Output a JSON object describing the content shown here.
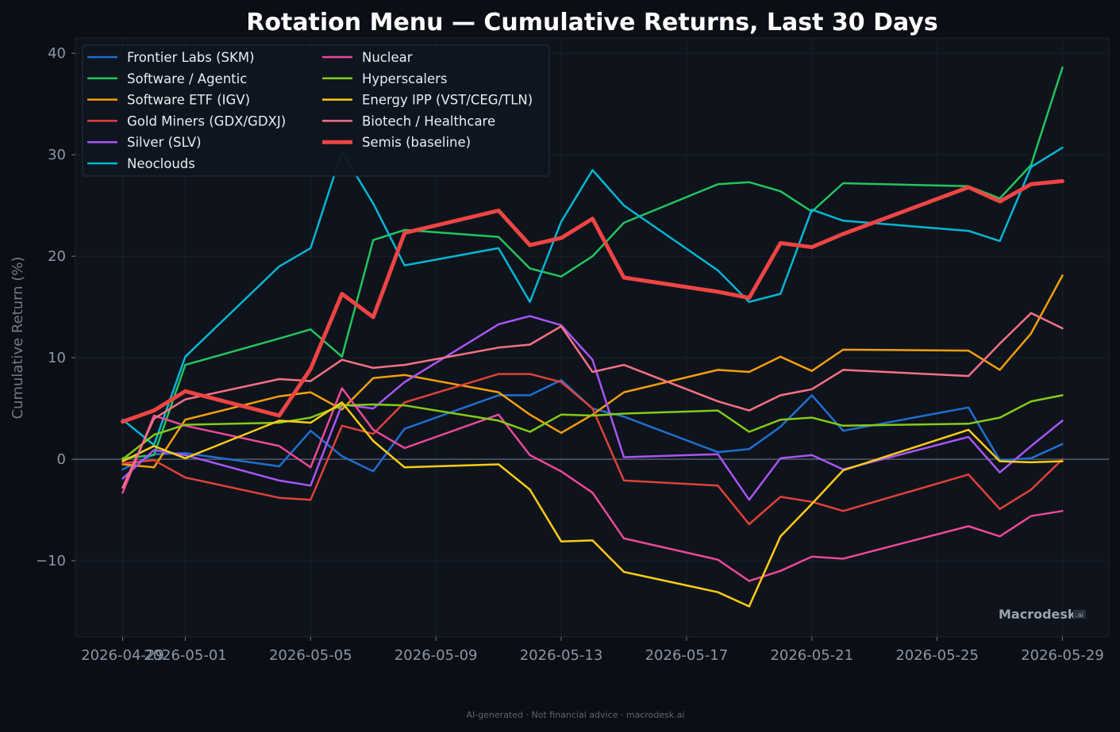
{
  "footer": "AI-generated · Not financial advice · macrodesk.ai",
  "watermark": {
    "main": "Macrodesk",
    "sub": ".ai"
  },
  "chart_data": {
    "type": "line",
    "title": "Rotation Menu — Cumulative Returns, Last 30 Days",
    "xlabel": "",
    "ylabel": "Cumulative Return (%)",
    "ylim": [
      -17.5,
      41.5
    ],
    "yticks": [
      40,
      30,
      20,
      10,
      0,
      -10
    ],
    "ytick_labels": [
      "40",
      "30",
      "20",
      "10",
      "0",
      "−10"
    ],
    "xticks": [
      "2026-04-29",
      "2026-05-01",
      "2026-05-05",
      "2026-05-09",
      "2026-05-13",
      "2026-05-17",
      "2026-05-21",
      "2026-05-25",
      "2026-05-29"
    ],
    "grid": true,
    "legend_position": "top-left",
    "x": [
      "2026-04-29",
      "2026-04-30",
      "2026-05-01",
      "2026-05-04",
      "2026-05-05",
      "2026-05-06",
      "2026-05-07",
      "2026-05-08",
      "2026-05-11",
      "2026-05-12",
      "2026-05-13",
      "2026-05-14",
      "2026-05-15",
      "2026-05-18",
      "2026-05-19",
      "2026-05-20",
      "2026-05-21",
      "2026-05-22",
      "2026-05-26",
      "2026-05-27",
      "2026-05-28",
      "2026-05-29"
    ],
    "series": [
      {
        "name": "Frontier Labs (SKM)",
        "color": "#1f6fd1",
        "width": 2.5,
        "values": [
          -1.0,
          0.5,
          0.6,
          -0.7,
          2.8,
          0.3,
          -1.2,
          3.0,
          6.3,
          6.3,
          7.8,
          5.0,
          4.2,
          0.7,
          1.0,
          3.2,
          6.3,
          2.8,
          5.1,
          -0.1,
          0.1,
          1.5
        ]
      },
      {
        "name": "Software / Agentic",
        "color": "#22c55e",
        "width": 2.5,
        "values": [
          0.1,
          0.4,
          9.3,
          11.9,
          12.8,
          10.1,
          21.6,
          22.6,
          21.9,
          18.8,
          18.0,
          20.0,
          23.3,
          27.1,
          27.3,
          26.4,
          24.4,
          27.2,
          26.9,
          25.7,
          29.0,
          38.6
        ]
      },
      {
        "name": "Software ETF (IGV)",
        "color": "#f59e0b",
        "width": 2.5,
        "values": [
          -0.5,
          -0.8,
          3.9,
          6.2,
          6.6,
          4.9,
          8.0,
          8.3,
          6.6,
          4.4,
          2.6,
          4.4,
          6.6,
          8.8,
          8.6,
          10.1,
          8.7,
          10.8,
          10.7,
          8.8,
          12.4,
          18.1
        ]
      },
      {
        "name": "Gold Miners (GDX/GDXJ)",
        "color": "#e0413a",
        "width": 2.5,
        "values": [
          -0.4,
          -0.1,
          -1.8,
          -3.8,
          -4.0,
          3.3,
          2.5,
          5.6,
          8.4,
          8.4,
          7.6,
          5.0,
          -2.1,
          -2.6,
          -6.4,
          -3.7,
          -4.2,
          -5.1,
          -1.5,
          -4.9,
          -3.0,
          0.0
        ]
      },
      {
        "name": "Silver (SLV)",
        "color": "#a855f7",
        "width": 2.5,
        "values": [
          -1.9,
          0.9,
          0.4,
          -2.1,
          -2.6,
          5.4,
          5.0,
          7.6,
          13.3,
          14.1,
          13.2,
          9.8,
          0.2,
          0.5,
          -4.0,
          0.1,
          0.4,
          -1.0,
          2.2,
          -1.3,
          1.3,
          3.8
        ]
      },
      {
        "name": "Neoclouds",
        "color": "#06b6d4",
        "width": 2.5,
        "values": [
          3.9,
          1.4,
          10.1,
          19.0,
          20.8,
          30.3,
          25.2,
          19.1,
          20.8,
          15.5,
          23.4,
          28.5,
          25.0,
          18.6,
          15.5,
          16.3,
          24.6,
          23.5,
          22.5,
          21.5,
          28.8,
          30.7
        ]
      },
      {
        "name": "Nuclear",
        "color": "#ec4899",
        "width": 2.5,
        "values": [
          -3.3,
          4.3,
          3.3,
          1.3,
          -0.8,
          7.0,
          2.9,
          1.1,
          4.4,
          0.4,
          -1.2,
          -3.3,
          -7.8,
          -9.9,
          -12.0,
          -11.0,
          -9.6,
          -9.8,
          -6.6,
          -7.6,
          -5.6,
          -5.1
        ]
      },
      {
        "name": "Hyperscalers",
        "color": "#84cc16",
        "width": 2.5,
        "values": [
          0.0,
          2.4,
          3.4,
          3.6,
          4.1,
          5.3,
          5.4,
          5.3,
          3.8,
          2.7,
          4.4,
          4.3,
          4.5,
          4.8,
          2.7,
          3.9,
          4.1,
          3.3,
          3.5,
          4.1,
          5.7,
          6.3
        ]
      },
      {
        "name": "Energy IPP (VST/CEG/TLN)",
        "color": "#facc15",
        "width": 2.5,
        "values": [
          -0.2,
          1.3,
          0.1,
          3.8,
          3.6,
          5.6,
          1.8,
          -0.8,
          -0.5,
          -3.0,
          -8.1,
          -8.0,
          -11.1,
          -13.1,
          -14.5,
          -7.6,
          -4.4,
          -1.1,
          2.9,
          -0.2,
          -0.3,
          -0.2
        ]
      },
      {
        "name": "Biotech / Healthcare",
        "color": "#f87185",
        "width": 2.5,
        "values": [
          -2.8,
          4.0,
          5.9,
          7.9,
          7.7,
          9.8,
          9.0,
          9.3,
          11.0,
          11.3,
          13.1,
          8.6,
          9.3,
          5.7,
          4.8,
          6.3,
          6.9,
          8.8,
          8.2,
          11.4,
          14.4,
          12.9
        ]
      },
      {
        "name": "Semis (baseline)",
        "color": "#ef4444",
        "width": 5,
        "values": [
          3.7,
          4.8,
          6.7,
          4.3,
          8.9,
          16.3,
          14.0,
          22.3,
          24.5,
          21.1,
          21.8,
          23.7,
          17.9,
          16.5,
          15.9,
          21.3,
          20.9,
          22.2,
          26.8,
          25.4,
          27.1,
          27.4
        ]
      }
    ]
  }
}
